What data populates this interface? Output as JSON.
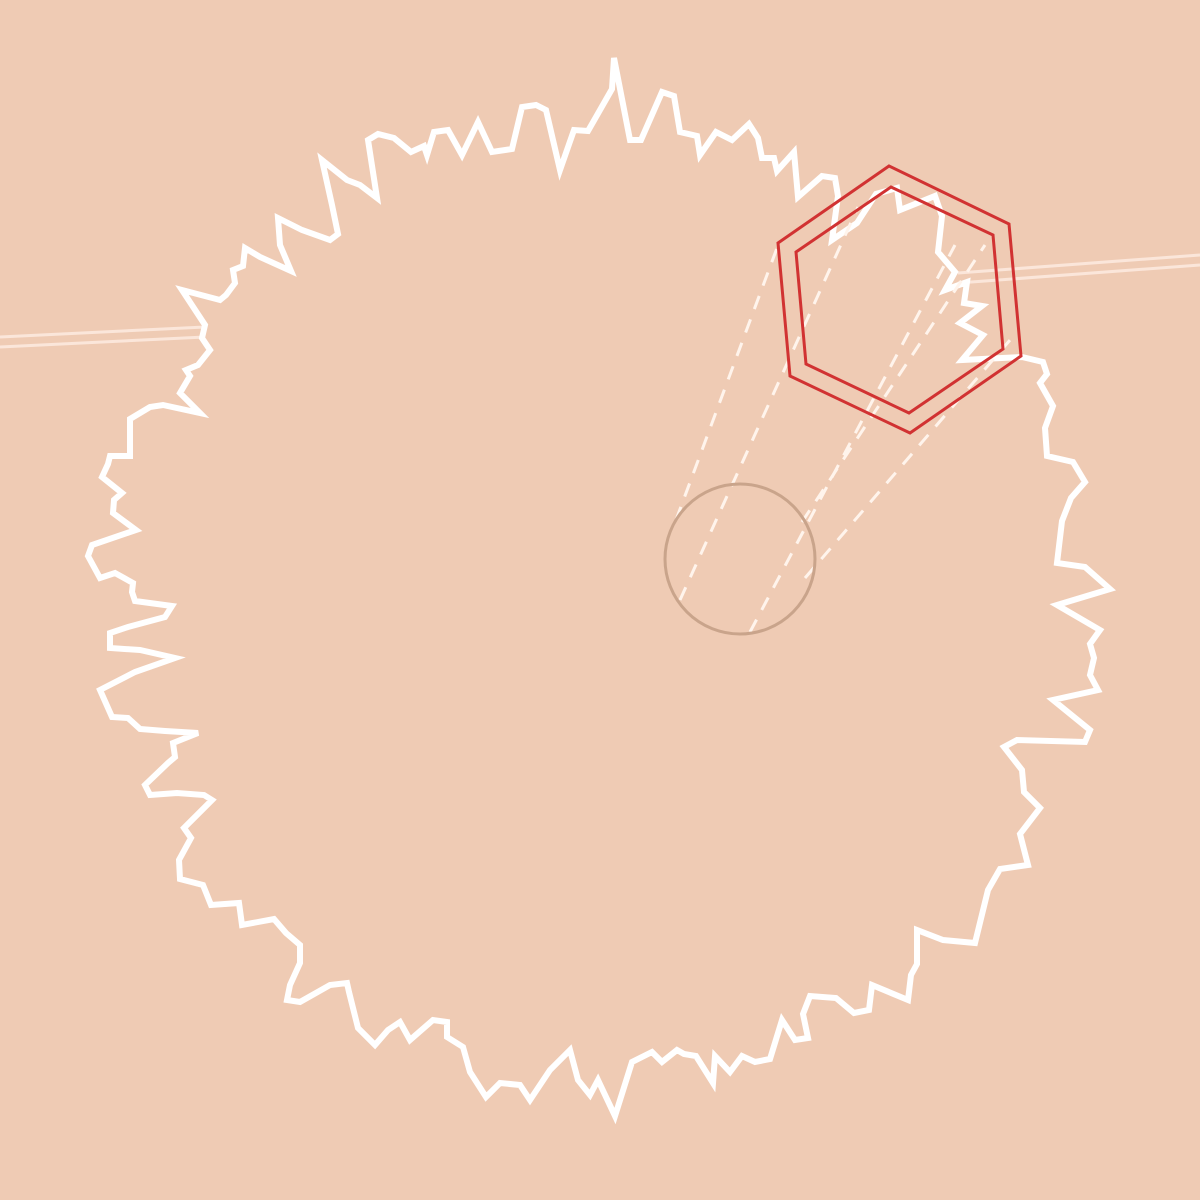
{
  "colors": {
    "background": "#efcbb4",
    "planet_outline": "#ffffff",
    "rail": "#fbe6da",
    "selector": "#d13232",
    "guide_lines": "#fff4ec",
    "marker": "#c9a48b"
  },
  "scene": {
    "planet": {
      "shape": "jagged-ring",
      "icon": "planet-outline-icon"
    },
    "selector": {
      "shape": "hexagon",
      "icon": "hex-selector-icon",
      "rings": 2
    },
    "marker": {
      "shape": "circle",
      "icon": "target-circle-icon"
    }
  }
}
